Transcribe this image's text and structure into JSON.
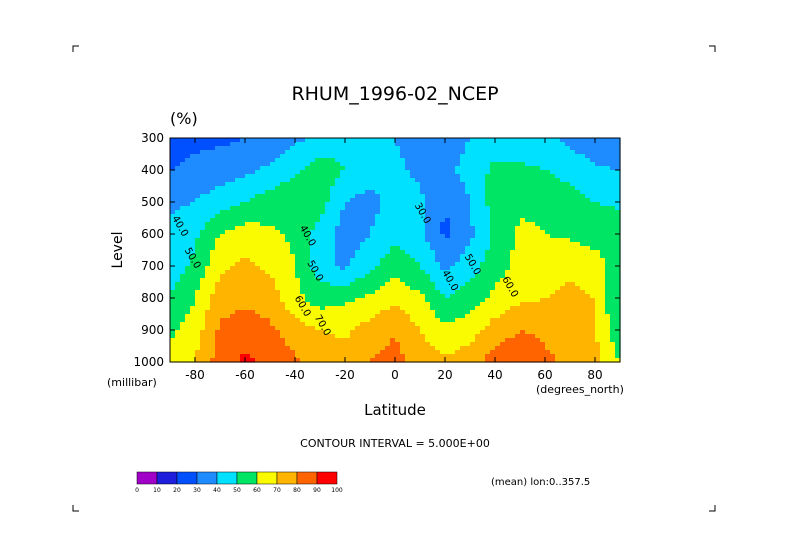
{
  "chart_data": {
    "type": "heatmap",
    "title": "RHUM_1996-02_NCEP",
    "units_label": "(%)",
    "xlabel": "Latitude",
    "xunits": "(degrees_north)",
    "ylabel": "Level",
    "yunits": "(millibar)",
    "xlim": [
      -90,
      90
    ],
    "ylim": [
      1000,
      300
    ],
    "x_ticks": [
      -80,
      -60,
      -40,
      -20,
      0,
      20,
      40,
      60,
      80
    ],
    "x_tick_labels": [
      "-80",
      "-60",
      "-40",
      "-20",
      "0",
      "20",
      "40",
      "60",
      "80"
    ],
    "y_ticks": [
      300,
      400,
      500,
      600,
      700,
      800,
      900,
      1000
    ],
    "y_tick_labels": [
      "300",
      "400",
      "500",
      "600",
      "700",
      "800",
      "900",
      "1000"
    ],
    "contour_interval_text": "CONTOUR INTERVAL = 5.000E+00",
    "mean_text": "(mean) lon:0..357.5",
    "contour_labels": [
      {
        "text": "40.0",
        "lat": -87,
        "lev": 580
      },
      {
        "text": "50.0",
        "lat": -82,
        "lev": 680
      },
      {
        "text": "40.0",
        "lat": -36,
        "lev": 610
      },
      {
        "text": "50.0",
        "lat": -33,
        "lev": 720
      },
      {
        "text": "60.0",
        "lat": -38,
        "lev": 830
      },
      {
        "text": "70.0",
        "lat": -30,
        "lev": 890
      },
      {
        "text": "30.0",
        "lat": 10,
        "lev": 540
      },
      {
        "text": "40.0",
        "lat": 21,
        "lev": 750
      },
      {
        "text": "50.0",
        "lat": 30,
        "lev": 700
      },
      {
        "text": "60.0",
        "lat": 45,
        "lev": 770
      }
    ],
    "colorbar": {
      "levels": [
        "0",
        "10",
        "20",
        "30",
        "40",
        "50",
        "60",
        "70",
        "80",
        "90",
        "100"
      ],
      "colors": [
        "#a000c8",
        "#1e1edc",
        "#0050ff",
        "#1e8cff",
        "#00e1ff",
        "#00e664",
        "#fafa00",
        "#ffb400",
        "#ff6400",
        "#ff0000"
      ]
    },
    "grid": {
      "lats": [
        -90,
        -80,
        -70,
        -60,
        -50,
        -40,
        -30,
        -20,
        -10,
        0,
        10,
        20,
        30,
        40,
        50,
        60,
        70,
        80,
        90
      ],
      "levels": [
        300,
        400,
        500,
        600,
        700,
        800,
        900,
        1000
      ],
      "values": [
        [
          25,
          27,
          28,
          30,
          33,
          38,
          42,
          47,
          44,
          40,
          35,
          32,
          40,
          45,
          43,
          42,
          38,
          32,
          30
        ],
        [
          30,
          33,
          35,
          38,
          42,
          48,
          55,
          50,
          45,
          42,
          38,
          36,
          45,
          52,
          52,
          50,
          46,
          42,
          40
        ],
        [
          38,
          40,
          45,
          50,
          55,
          58,
          55,
          40,
          36,
          44,
          42,
          30,
          40,
          55,
          58,
          58,
          55,
          50,
          48
        ],
        [
          42,
          48,
          60,
          65,
          62,
          58,
          45,
          35,
          40,
          48,
          42,
          28,
          38,
          52,
          62,
          60,
          58,
          55,
          58
        ],
        [
          45,
          52,
          68,
          72,
          68,
          60,
          45,
          38,
          48,
          55,
          50,
          38,
          45,
          56,
          63,
          66,
          68,
          65,
          52
        ],
        [
          50,
          60,
          75,
          78,
          75,
          63,
          55,
          58,
          62,
          68,
          62,
          50,
          55,
          62,
          68,
          70,
          72,
          70,
          48
        ],
        [
          58,
          65,
          82,
          85,
          82,
          74,
          70,
          68,
          74,
          79,
          70,
          62,
          65,
          75,
          80,
          78,
          75,
          70,
          52
        ],
        [
          65,
          70,
          85,
          92,
          88,
          82,
          76,
          74,
          80,
          84,
          76,
          72,
          76,
          85,
          87,
          82,
          78,
          74,
          60
        ]
      ]
    }
  }
}
